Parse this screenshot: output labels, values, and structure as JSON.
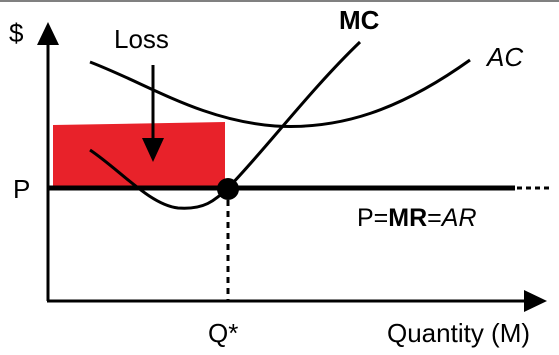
{
  "labels": {
    "y_axis": "$",
    "price": "P",
    "loss": "Loss",
    "mc": "MC",
    "ac": "AC",
    "demand_p": "P=",
    "demand_mr": "MR",
    "demand_eq": "=",
    "demand_ar": "AR",
    "q_star": "Q*",
    "x_axis": "Quantity (M)"
  },
  "colors": {
    "loss_area": "#e8222a",
    "lines": "#000000"
  }
}
